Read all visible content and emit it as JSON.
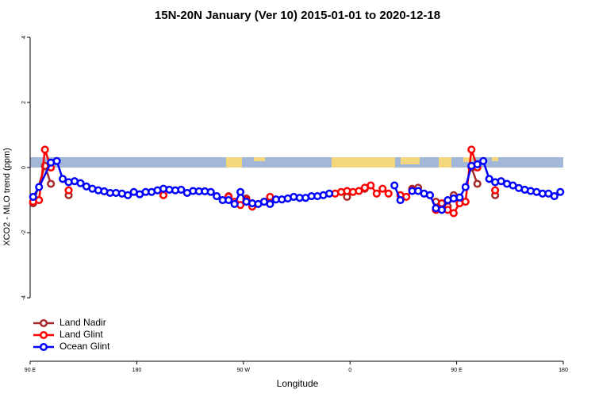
{
  "chart_data": {
    "type": "line",
    "title": "15N-20N January (Ver 10)   2015-01-01 to 2020-12-18",
    "xlabel": "Longitude",
    "ylabel": "XCO2 - MLO trend (ppm)",
    "xlim": [
      90,
      540
    ],
    "ylim": [
      -5.95,
      4.17
    ],
    "xticks": [
      {
        "value": 90,
        "label": "90 E"
      },
      {
        "value": 180,
        "label": "180"
      },
      {
        "value": 270,
        "label": "90 W"
      },
      {
        "value": 360,
        "label": "0"
      },
      {
        "value": 450,
        "label": "90 E"
      },
      {
        "value": 540,
        "label": "180"
      }
    ],
    "yticks": [
      -4,
      -2,
      0,
      2,
      4
    ],
    "legend": "lower left",
    "series": [
      {
        "name": "Land Nadir",
        "color": "#a52a2a",
        "x": [
          92.5,
          102.5,
          107.5,
          112.5,
          122.5,
          127.5,
          257.5,
          262.5,
          272.5,
          277.5,
          292.5,
          297.5,
          357.5,
          362.5,
          372.5,
          377.5,
          412.5,
          417.5,
          422.5,
          432.5,
          437.5,
          442.5,
          447.5,
          452.5,
          462.5,
          467.5,
          472.5,
          482.5
        ],
        "values": [
          -1.1,
          0.05,
          -0.5,
          null,
          -0.85,
          null,
          -0.88,
          null,
          -0.95,
          null,
          -0.95,
          null,
          -0.9,
          null,
          -0.65,
          null,
          -0.65,
          -0.62,
          null,
          -1.05,
          -1.2,
          -1.2,
          -0.85,
          null,
          0.0,
          -0.5,
          null,
          -0.85
        ]
      },
      {
        "name": "Land Glint",
        "color": "#ff0000",
        "x": [
          92.5,
          97.5,
          102.5,
          107.5,
          112.5,
          122.5,
          127.5,
          202.5,
          207.5,
          257.5,
          262.5,
          267.5,
          272.5,
          277.5,
          282.5,
          287.5,
          292.5,
          297.5,
          347.5,
          352.5,
          357.5,
          362.5,
          367.5,
          372.5,
          377.5,
          382.5,
          387.5,
          392.5,
          397.5,
          402.5,
          407.5,
          412.5,
          417.5,
          432.5,
          437.5,
          442.5,
          447.5,
          452.5,
          457.5,
          462.5,
          467.5,
          472.5,
          482.5
        ],
        "values": [
          -1.05,
          -1.0,
          0.55,
          0.0,
          null,
          -0.7,
          null,
          -0.85,
          null,
          -0.9,
          -1.05,
          -1.15,
          -1.0,
          -1.2,
          null,
          -1.05,
          -0.9,
          null,
          -0.8,
          -0.75,
          -0.72,
          -0.75,
          -0.72,
          -0.62,
          -0.55,
          -0.8,
          -0.65,
          -0.8,
          null,
          -0.85,
          -0.9,
          -0.7,
          null,
          -1.3,
          -1.1,
          -1.3,
          -1.4,
          -1.1,
          -1.05,
          0.55,
          0.0,
          null,
          -0.7
        ]
      },
      {
        "name": "Ocean Glint",
        "color": "#0000ff",
        "x": [
          92.5,
          97.5,
          107.5,
          112.5,
          117.5,
          122.5,
          127.5,
          132.5,
          137.5,
          142.5,
          147.5,
          152.5,
          157.5,
          162.5,
          167.5,
          172.5,
          177.5,
          182.5,
          187.5,
          192.5,
          197.5,
          202.5,
          207.5,
          212.5,
          217.5,
          222.5,
          227.5,
          232.5,
          237.5,
          242.5,
          247.5,
          252.5,
          257.5,
          262.5,
          267.5,
          272.5,
          277.5,
          282.5,
          287.5,
          292.5,
          297.5,
          302.5,
          307.5,
          312.5,
          317.5,
          322.5,
          327.5,
          332.5,
          337.5,
          342.5,
          347.5,
          397.5,
          402.5,
          407.5,
          412.5,
          417.5,
          422.5,
          427.5,
          432.5,
          437.5,
          442.5,
          447.5,
          452.5,
          457.5,
          462.5,
          467.5,
          472.5,
          477.5,
          482.5,
          487.5,
          492.5,
          497.5,
          502.5,
          507.5,
          512.5,
          517.5,
          522.5,
          527.5,
          532.5,
          537.5
        ],
        "values": [
          -0.9,
          -0.6,
          0.15,
          0.2,
          -0.35,
          -0.45,
          -0.42,
          -0.48,
          -0.58,
          -0.65,
          -0.7,
          -0.73,
          -0.78,
          -0.78,
          -0.8,
          -0.85,
          -0.75,
          -0.82,
          -0.75,
          -0.75,
          -0.7,
          -0.65,
          -0.68,
          -0.7,
          -0.68,
          -0.78,
          -0.72,
          -0.73,
          -0.73,
          -0.75,
          -0.88,
          -1.0,
          -1.0,
          -1.12,
          -0.75,
          -1.05,
          -1.1,
          -1.12,
          -1.05,
          -1.12,
          -0.98,
          -0.98,
          -0.95,
          -0.9,
          -0.93,
          -0.93,
          -0.88,
          -0.88,
          -0.85,
          -0.8,
          null,
          -0.55,
          -1.0,
          null,
          -0.72,
          -0.72,
          -0.8,
          -0.85,
          -1.25,
          -1.3,
          -1.0,
          -0.95,
          -0.92,
          -0.6,
          0.05,
          0.1,
          0.2,
          -0.35,
          -0.45,
          -0.42,
          -0.5,
          -0.55,
          -0.63,
          -0.68,
          -0.72,
          -0.75,
          -0.8,
          -0.8,
          -0.88,
          -0.75
        ]
      }
    ]
  }
}
